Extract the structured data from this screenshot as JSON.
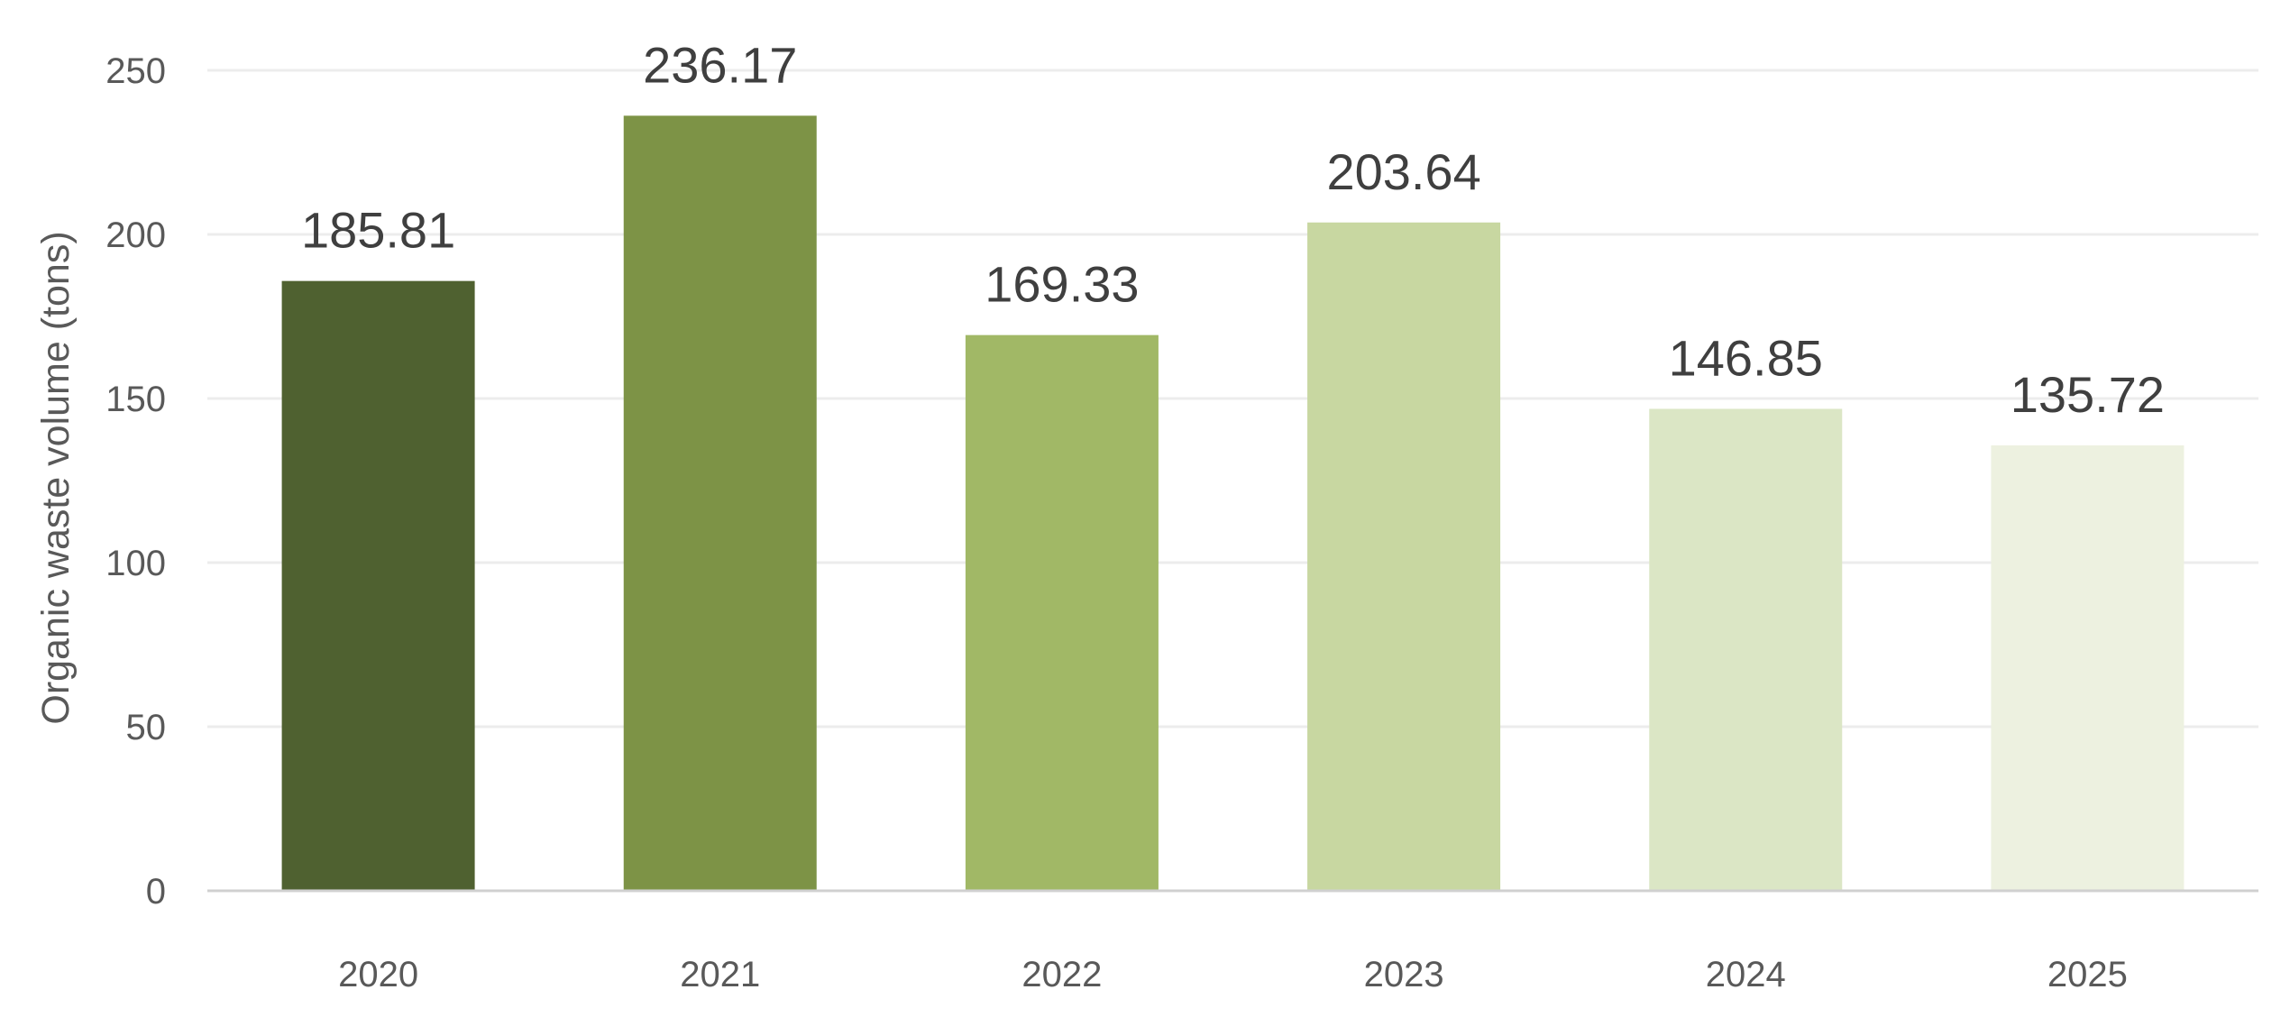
{
  "chart_data": {
    "type": "bar",
    "title": "",
    "xlabel": "",
    "ylabel": "Organic waste volume (tons)",
    "categories": [
      "2020",
      "2021",
      "2022",
      "2023",
      "2024",
      "2025"
    ],
    "values": [
      185.81,
      236.17,
      169.33,
      203.64,
      146.85,
      135.72
    ],
    "data_labels": [
      "185.81",
      "236.17",
      "169.33",
      "203.64",
      "146.85",
      "135.72"
    ],
    "colors": [
      "#4f6130",
      "#7d9346",
      "#a1b866",
      "#c8d7a1",
      "#dbe6c5",
      "#edf1e0"
    ],
    "ylim": [
      0,
      250
    ],
    "yticks": [
      0,
      50,
      100,
      150,
      200,
      250
    ],
    "ytick_labels": [
      "0",
      "50",
      "100",
      "150",
      "200",
      "250"
    ],
    "grid": true,
    "legend": "none"
  }
}
